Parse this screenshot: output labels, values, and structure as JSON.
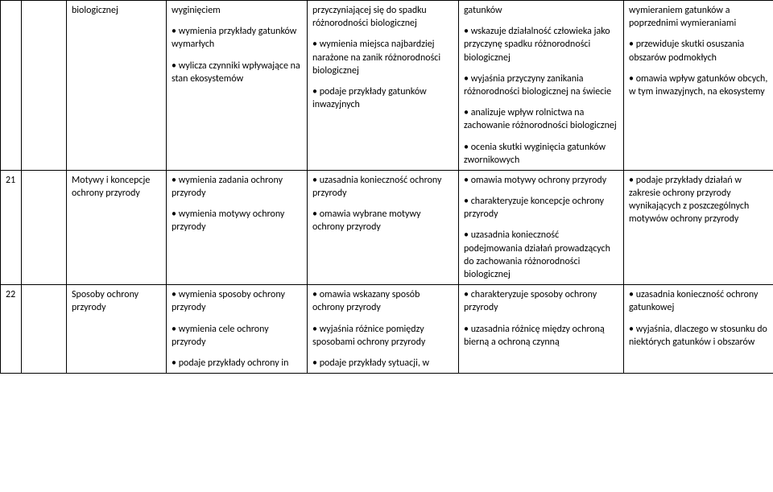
{
  "rows": [
    {
      "num": "",
      "topic": "",
      "col2": "biologicznej",
      "col3": [
        "wyginięciem",
        "• wymienia przykłady gatunków wymarłych",
        "• wylicza czynniki wpływające na stan ekosystemów"
      ],
      "col4": [
        "przyczyniającej się do spadku różnorodności biologicznej",
        "• wymienia miejsca najbardziej narażone na zanik różnorodności biologicznej",
        "• podaje przykłady gatunków inwazyjnych"
      ],
      "col5": [
        "gatunków",
        "• wskazuje działalność człowieka jako przyczynę spadku różnorodności biologicznej",
        "• wyjaśnia przyczyny zanikania różnorodności biologicznej na świecie",
        "• analizuje wpływ rolnictwa na zachowanie różnorodności biologicznej",
        "• ocenia skutki wyginięcia gatunków zwornikowych"
      ],
      "col6": [
        "wymieraniem gatunków a poprzednimi wymieraniami",
        "• przewiduje skutki osuszania obszarów podmokłych",
        "• omawia wpływ gatunków obcych, w tym inwazyjnych, na ekosystemy"
      ]
    },
    {
      "num": "21",
      "topic": "",
      "col2": "Motywy i koncepcje ochrony przyrody",
      "col3": [
        "• wymienia zadania ochrony przyrody",
        "• wymienia motywy ochrony przyrody"
      ],
      "col4": [
        "• uzasadnia konieczność ochrony przyrody",
        "• omawia wybrane motywy ochrony przyrody"
      ],
      "col5": [
        "• omawia motywy ochrony przyrody",
        "• charakteryzuje koncepcje ochrony przyrody",
        "• uzasadnia konieczność podejmowania działań prowadzących do zachowania różnorodności biologicznej"
      ],
      "col6": [
        "• podaje przykłady działań w zakresie ochrony przyrody wynikających z poszczególnych motywów ochrony przyrody"
      ]
    },
    {
      "num": "22",
      "topic": "",
      "col2": "Sposoby ochrony przyrody",
      "col3": [
        "• wymienia sposoby ochrony przyrody",
        "• wymienia cele ochrony przyrody",
        "• podaje przykłady ochrony in"
      ],
      "col4": [
        "• omawia wskazany sposób ochrony przyrody",
        "• wyjaśnia różnice pomiędzy sposobami ochrony przyrody",
        "• podaje przykłady sytuacji, w"
      ],
      "col5": [
        "• charakteryzuje sposoby ochrony przyrody",
        "• uzasadnia różnicę między ochroną bierną a ochroną czynną"
      ],
      "col6": [
        "• uzasadnia konieczność ochrony gatunkowej",
        "• wyjaśnia, dlaczego w stosunku do niektórych gatunków i obszarów"
      ]
    }
  ]
}
